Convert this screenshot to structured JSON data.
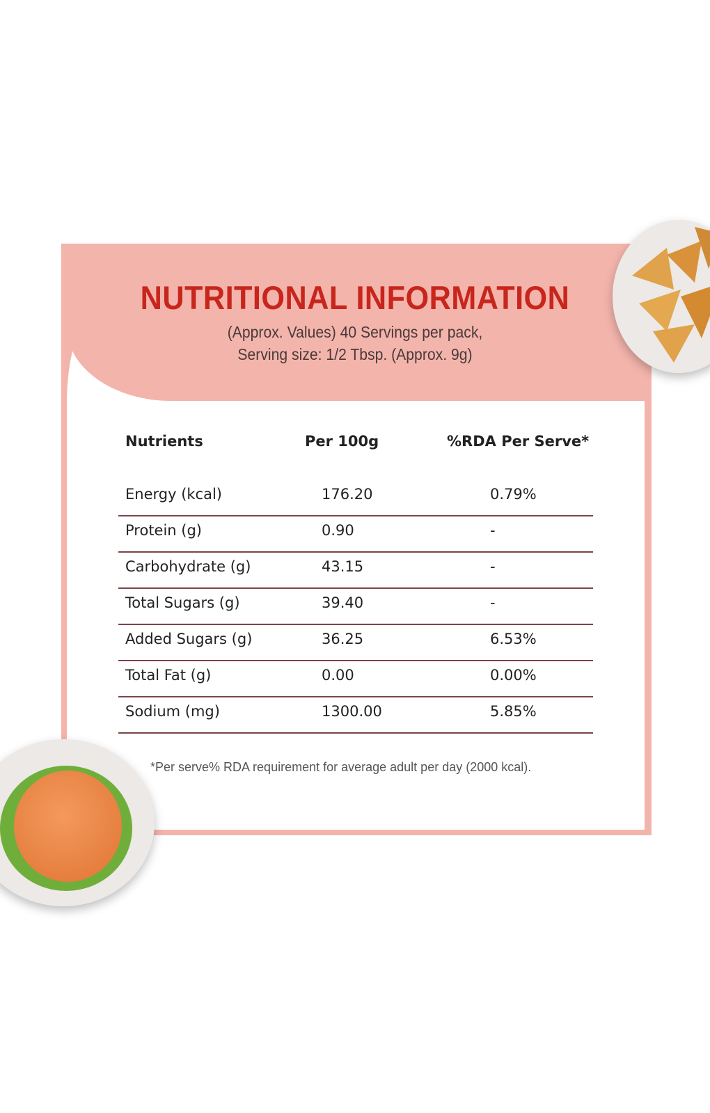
{
  "header": {
    "title": "NUTRITIONAL INFORMATION",
    "subtitle_line1": "(Approx. Values) 40 Servings per pack,",
    "subtitle_line2": "Serving size: 1/2 Tbsp. (Approx. 9g)"
  },
  "table": {
    "columns": [
      "Nutrients",
      "Per 100g",
      "%RDA Per Serve*"
    ],
    "rows": [
      [
        "Energy (kcal)",
        "176.20",
        "0.79%"
      ],
      [
        "Protein (g)",
        "0.90",
        "-"
      ],
      [
        "Carbohydrate (g)",
        "43.15",
        "-"
      ],
      [
        "Total Sugars (g)",
        "39.40",
        "-"
      ],
      [
        "Added Sugars (g)",
        "36.25",
        "6.53%"
      ],
      [
        "Total Fat (g)",
        "0.00",
        "0.00%"
      ],
      [
        "Sodium (mg)",
        "1300.00",
        "5.85%"
      ]
    ]
  },
  "footnote": "*Per serve% RDA requirement for average adult per day (2000 kcal).",
  "images": [
    "samosa-plate",
    "burger-plate"
  ],
  "colors": {
    "frame": "#f3b4ac",
    "title": "#c8261c",
    "rule": "#7d4448"
  }
}
